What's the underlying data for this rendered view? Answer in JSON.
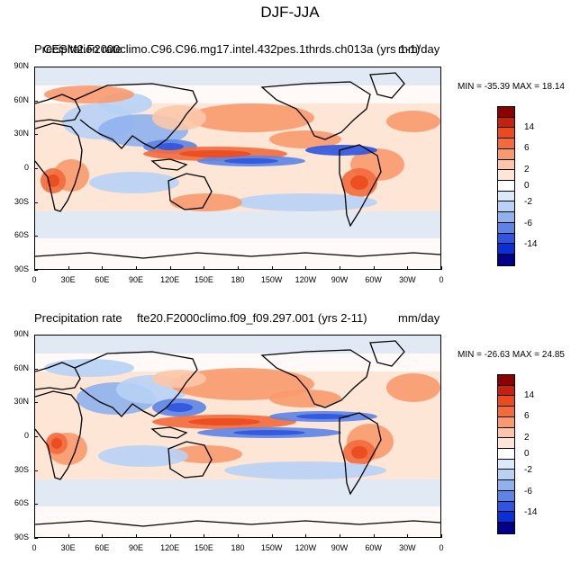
{
  "main_title": "DJF-JJA",
  "panels": [
    {
      "left_title": "Precipitation rate",
      "center_title": "CESM2.F2000climo.C96.C96.mg17.intel.432pes.1thrds.ch013a (yrs 1-1)",
      "right_title": "mm/day",
      "minmax": "MIN = -35.39 MAX =  18.14"
    },
    {
      "left_title": "Precipitation rate",
      "center_title": "fte20.F2000climo.f09_f09.297.001 (yrs 2-11)",
      "right_title": "mm/day",
      "minmax": "MIN = -26.63 MAX =  24.85"
    }
  ],
  "yticks": [
    "90N",
    "60N",
    "30N",
    "0",
    "30S",
    "60S",
    "90S"
  ],
  "xticks": [
    "0",
    "30E",
    "60E",
    "90E",
    "120E",
    "150E",
    "180",
    "150W",
    "120W",
    "90W",
    "60W",
    "30W",
    "0"
  ],
  "colorbar": {
    "colors": [
      "#8b0000",
      "#c8200d",
      "#ea4a1e",
      "#f36a3c",
      "#f89a6e",
      "#fcc6a8",
      "#fde6d5",
      "#ffffff",
      "#d9ebfb",
      "#b7d2f5",
      "#8fb1ee",
      "#5b84e6",
      "#2e54e0",
      "#0a2fd6",
      "#00008b"
    ],
    "labels": [
      "14",
      "6",
      "2",
      "0",
      "-2",
      "-6",
      "-14"
    ]
  }
}
